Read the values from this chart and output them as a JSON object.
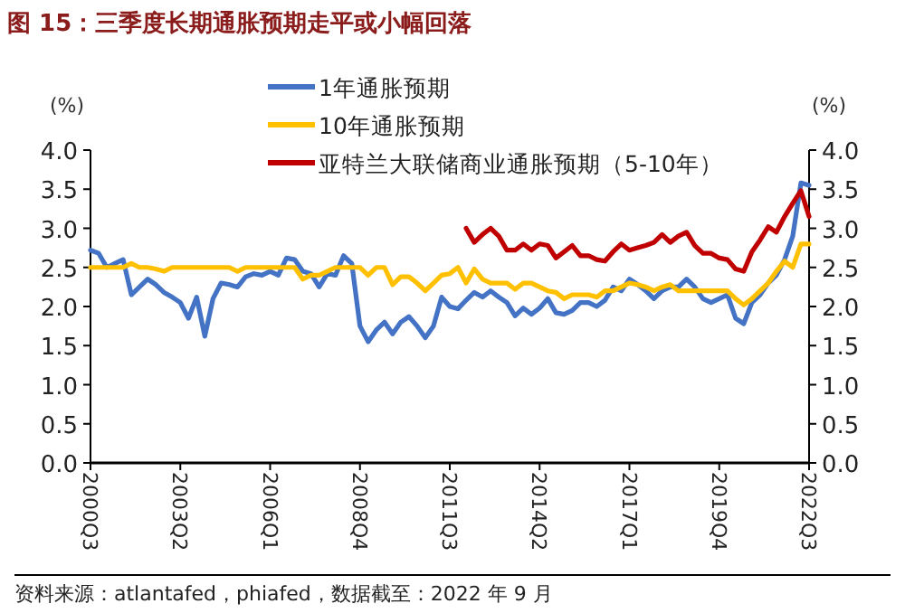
{
  "chart_data": {
    "type": "line",
    "title": "图 15：三季度长期通胀预期走平或小幅回落",
    "ylabel": "(%)",
    "y2label": "(%)",
    "categories": [
      "2000Q3",
      null,
      null,
      null,
      null,
      null,
      null,
      null,
      null,
      null,
      null,
      "2003Q2",
      null,
      null,
      null,
      null,
      null,
      null,
      null,
      null,
      null,
      null,
      "2006Q1",
      null,
      null,
      null,
      null,
      null,
      null,
      null,
      null,
      null,
      null,
      "2008Q4",
      null,
      null,
      null,
      null,
      null,
      null,
      null,
      null,
      null,
      null,
      "2011Q3",
      null,
      null,
      null,
      null,
      null,
      null,
      null,
      null,
      null,
      null,
      "2014Q2",
      null,
      null,
      null,
      null,
      null,
      null,
      null,
      null,
      null,
      null,
      "2017Q1",
      null,
      null,
      null,
      null,
      null,
      null,
      null,
      null,
      null,
      null,
      "2019Q4",
      null,
      null,
      null,
      null,
      null,
      null,
      null,
      null,
      null,
      null,
      "2022Q3"
    ],
    "series": [
      {
        "name": "1年通胀预期",
        "color": "#4472c4",
        "values": [
          2.72,
          2.68,
          2.5,
          2.55,
          2.6,
          2.15,
          2.25,
          2.35,
          2.28,
          2.18,
          2.12,
          2.05,
          1.85,
          2.12,
          1.62,
          2.1,
          2.3,
          2.28,
          2.25,
          2.38,
          2.42,
          2.4,
          2.45,
          2.4,
          2.62,
          2.6,
          2.45,
          2.42,
          2.25,
          2.42,
          2.4,
          2.65,
          2.55,
          1.75,
          1.55,
          1.7,
          1.8,
          1.65,
          1.8,
          1.87,
          1.75,
          1.6,
          1.75,
          2.12,
          2.0,
          1.97,
          2.08,
          2.18,
          2.12,
          2.2,
          2.12,
          2.05,
          1.88,
          1.98,
          1.9,
          1.98,
          2.1,
          1.92,
          1.9,
          1.95,
          2.05,
          2.05,
          2.0,
          2.08,
          2.25,
          2.2,
          2.35,
          2.28,
          2.2,
          2.1,
          2.2,
          2.25,
          2.25,
          2.35,
          2.25,
          2.1,
          2.05,
          2.1,
          2.15,
          1.85,
          1.78,
          2.05,
          2.15,
          2.3,
          2.4,
          2.6,
          2.9,
          3.58,
          3.55
        ]
      },
      {
        "name": "10年通胀预期",
        "color": "#ffc000",
        "values": [
          2.5,
          2.5,
          2.5,
          2.5,
          2.5,
          2.55,
          2.5,
          2.5,
          2.48,
          2.45,
          2.5,
          2.5,
          2.5,
          2.5,
          2.5,
          2.5,
          2.5,
          2.5,
          2.45,
          2.5,
          2.5,
          2.5,
          2.5,
          2.5,
          2.5,
          2.5,
          2.35,
          2.4,
          2.4,
          2.45,
          2.5,
          2.5,
          2.5,
          2.5,
          2.4,
          2.5,
          2.5,
          2.28,
          2.38,
          2.38,
          2.3,
          2.2,
          2.3,
          2.4,
          2.42,
          2.5,
          2.3,
          2.48,
          2.35,
          2.3,
          2.3,
          2.3,
          2.22,
          2.3,
          2.3,
          2.25,
          2.2,
          2.18,
          2.1,
          2.15,
          2.15,
          2.15,
          2.12,
          2.2,
          2.2,
          2.25,
          2.3,
          2.28,
          2.25,
          2.2,
          2.25,
          2.28,
          2.2,
          2.2,
          2.2,
          2.2,
          2.2,
          2.2,
          2.2,
          2.1,
          2.02,
          2.1,
          2.2,
          2.3,
          2.45,
          2.58,
          2.5,
          2.8,
          2.8
        ]
      },
      {
        "name": "亚特兰大联储商业通胀预期（5-10年）",
        "color": "#c00000",
        "values": [
          null,
          null,
          null,
          null,
          null,
          null,
          null,
          null,
          null,
          null,
          null,
          null,
          null,
          null,
          null,
          null,
          null,
          null,
          null,
          null,
          null,
          null,
          null,
          null,
          null,
          null,
          null,
          null,
          null,
          null,
          null,
          null,
          null,
          null,
          null,
          null,
          null,
          null,
          null,
          null,
          null,
          null,
          null,
          null,
          null,
          null,
          3.0,
          2.82,
          2.92,
          3.0,
          2.9,
          2.72,
          2.72,
          2.8,
          2.72,
          2.8,
          2.78,
          2.62,
          2.7,
          2.78,
          2.65,
          2.65,
          2.6,
          2.58,
          2.7,
          2.8,
          2.72,
          2.75,
          2.78,
          2.82,
          2.92,
          2.82,
          2.9,
          2.95,
          2.78,
          2.68,
          2.68,
          2.62,
          2.6,
          2.48,
          2.45,
          2.7,
          2.85,
          3.02,
          2.95,
          3.15,
          3.32,
          3.48,
          3.15
        ]
      }
    ],
    "ylim": [
      0,
      4
    ],
    "yticks": [
      {
        "value": 0,
        "label": "0.0"
      },
      {
        "value": 0.5,
        "label": "0.5"
      },
      {
        "value": 1,
        "label": "1.0"
      },
      {
        "value": 1.5,
        "label": "1.5"
      },
      {
        "value": 2,
        "label": "2.0"
      },
      {
        "value": 2.5,
        "label": "2.5"
      },
      {
        "value": 3,
        "label": "3.0"
      },
      {
        "value": 3.5,
        "label": "3.5"
      },
      {
        "value": 4,
        "label": "4.0"
      }
    ],
    "y2lim": [
      0,
      4
    ],
    "y2ticks": [
      {
        "value": 0,
        "label": "0.0"
      },
      {
        "value": 0.5,
        "label": "0.5"
      },
      {
        "value": 1,
        "label": "1.0"
      },
      {
        "value": 1.5,
        "label": "1.5"
      },
      {
        "value": 2,
        "label": "2.0"
      },
      {
        "value": 2.5,
        "label": "2.5"
      },
      {
        "value": 3,
        "label": "3.0"
      },
      {
        "value": 3.5,
        "label": "3.5"
      },
      {
        "value": 4,
        "label": "4.0"
      }
    ],
    "legend": "top",
    "grid": false,
    "marker": "none",
    "line_style": "solid",
    "annotations": [
      "资料来源：atlantafed，phiafed，数据截至：2022 年 9 月"
    ]
  }
}
